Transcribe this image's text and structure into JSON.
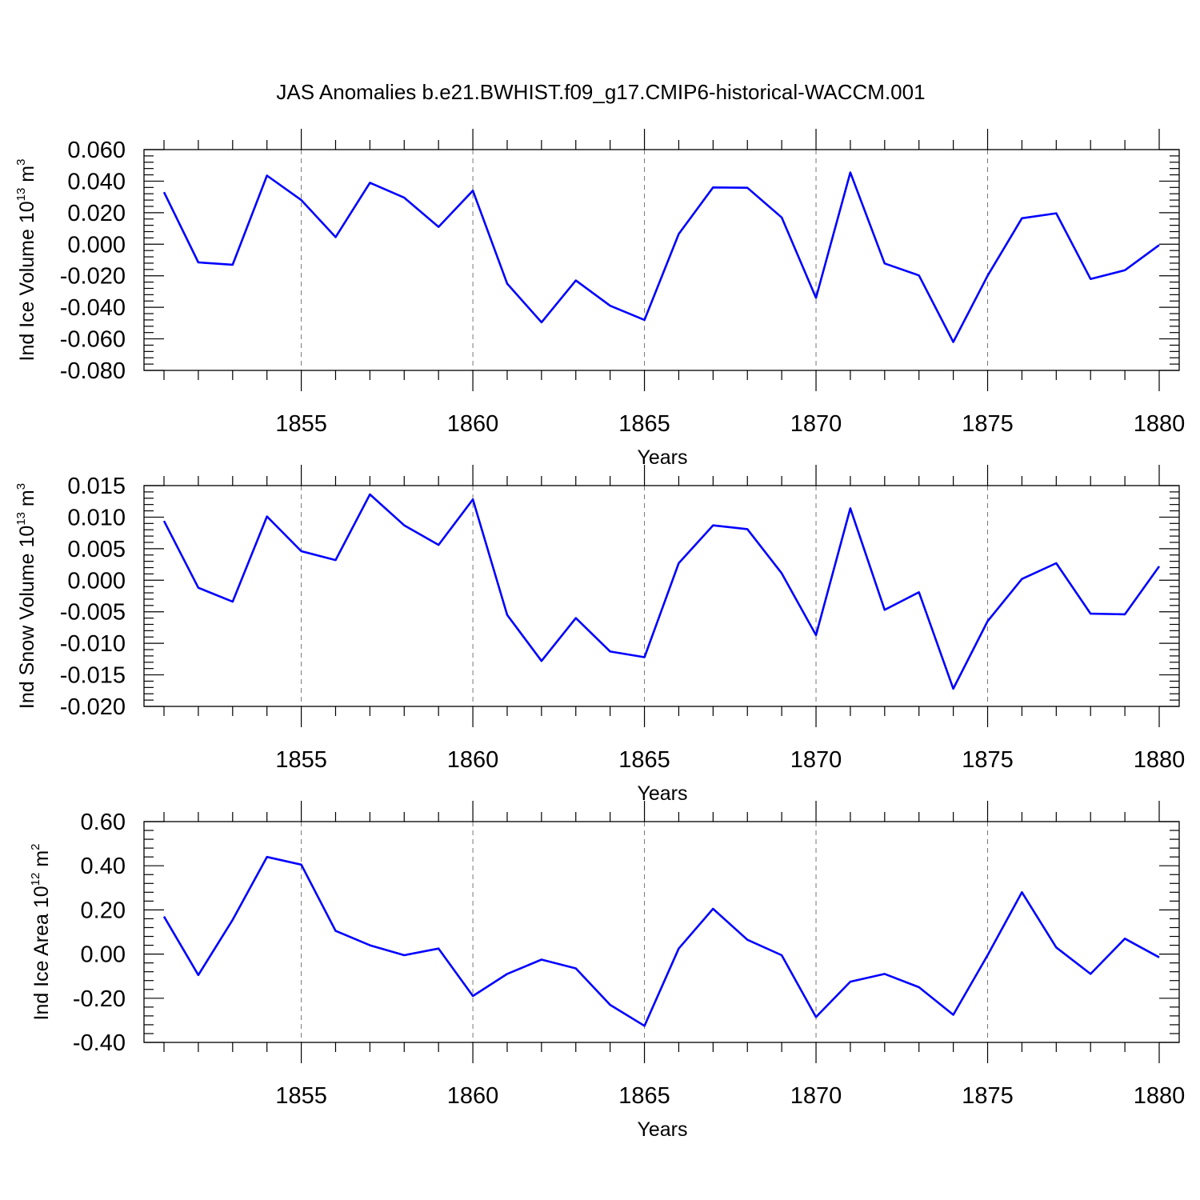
{
  "title": "JAS Anomalies b.e21.BWHIST.f09_g17.CMIP6-historical-WACCM.001",
  "colors": {
    "line": "#0000ff",
    "axis": "#000000",
    "grid": "#777777"
  },
  "chart_data": [
    {
      "type": "line",
      "xlabel": "Years",
      "ylabel": {
        "prefix": "Ind Ice Volume 10",
        "exponent": "13",
        "unit": " m",
        "unit_exponent": "3"
      },
      "xlim": [
        1851,
        1880
      ],
      "ylim": [
        -0.08,
        0.06
      ],
      "x_ticks": [
        "1855",
        "1860",
        "1865",
        "1870",
        "1875",
        "1880"
      ],
      "y_ticks": [
        "0.060",
        "0.040",
        "0.020",
        "0.000",
        "-0.020",
        "-0.040",
        "-0.060",
        "-0.080"
      ],
      "x": [
        1851,
        1852,
        1853,
        1854,
        1855,
        1856,
        1857,
        1858,
        1859,
        1860,
        1861,
        1862,
        1863,
        1864,
        1865,
        1866,
        1867,
        1868,
        1869,
        1870,
        1871,
        1872,
        1873,
        1874,
        1875,
        1876,
        1877,
        1878,
        1879,
        1880
      ],
      "series": [
        {
          "name": "Ind Ice Volume",
          "values": [
            0.033,
            -0.0115,
            -0.013,
            0.0435,
            0.028,
            0.0045,
            0.039,
            0.0295,
            0.011,
            0.034,
            -0.025,
            -0.0495,
            -0.023,
            -0.039,
            -0.048,
            0.0065,
            0.036,
            0.0358,
            0.017,
            -0.034,
            0.0455,
            -0.0122,
            -0.0198,
            -0.062,
            -0.02,
            0.0165,
            0.0196,
            -0.022,
            -0.0165,
            -0.0005
          ]
        }
      ]
    },
    {
      "type": "line",
      "xlabel": "Years",
      "ylabel": {
        "prefix": "Ind Snow Volume 10",
        "exponent": "13",
        "unit": " m",
        "unit_exponent": "3"
      },
      "xlim": [
        1851,
        1880
      ],
      "ylim": [
        -0.02,
        0.015
      ],
      "x_ticks": [
        "1855",
        "1860",
        "1865",
        "1870",
        "1875",
        "1880"
      ],
      "y_ticks": [
        "0.015",
        "0.010",
        "0.005",
        "0.000",
        "-0.005",
        "-0.010",
        "-0.015",
        "-0.020"
      ],
      "x": [
        1851,
        1852,
        1853,
        1854,
        1855,
        1856,
        1857,
        1858,
        1859,
        1860,
        1861,
        1862,
        1863,
        1864,
        1865,
        1866,
        1867,
        1868,
        1869,
        1870,
        1871,
        1872,
        1873,
        1874,
        1875,
        1876,
        1877,
        1878,
        1879,
        1880
      ],
      "series": [
        {
          "name": "Ind Snow Volume",
          "values": [
            0.0094,
            -0.0012,
            -0.0034,
            0.0101,
            0.0046,
            0.0032,
            0.0136,
            0.0087,
            0.0056,
            0.0128,
            -0.0055,
            -0.0128,
            -0.006,
            -0.0113,
            -0.0122,
            0.0027,
            0.0087,
            0.0081,
            0.0011,
            -0.0087,
            0.0114,
            -0.0047,
            -0.0019,
            -0.0172,
            -0.0065,
            0.0002,
            0.0027,
            -0.0053,
            -0.0054,
            0.0022
          ]
        }
      ]
    },
    {
      "type": "line",
      "xlabel": "Years",
      "ylabel": {
        "prefix": "Ind Ice Area 10",
        "exponent": "12",
        "unit": " m",
        "unit_exponent": "2"
      },
      "xlim": [
        1851,
        1880
      ],
      "ylim": [
        -0.4,
        0.6
      ],
      "x_ticks": [
        "1855",
        "1860",
        "1865",
        "1870",
        "1875",
        "1880"
      ],
      "y_ticks": [
        "0.60",
        "0.40",
        "0.20",
        "0.00",
        "-0.20",
        "-0.40"
      ],
      "x": [
        1851,
        1852,
        1853,
        1854,
        1855,
        1856,
        1857,
        1858,
        1859,
        1860,
        1861,
        1862,
        1863,
        1864,
        1865,
        1866,
        1867,
        1868,
        1869,
        1870,
        1871,
        1872,
        1873,
        1874,
        1875,
        1876,
        1877,
        1878,
        1879,
        1880
      ],
      "series": [
        {
          "name": "Ind Ice Area",
          "values": [
            0.17,
            -0.095,
            0.155,
            0.44,
            0.405,
            0.105,
            0.04,
            -0.005,
            0.025,
            -0.19,
            -0.09,
            -0.025,
            -0.065,
            -0.23,
            -0.325,
            0.025,
            0.205,
            0.065,
            -0.005,
            -0.285,
            -0.125,
            -0.09,
            -0.15,
            -0.275,
            -0.005,
            0.28,
            0.03,
            -0.09,
            0.07,
            -0.015
          ]
        }
      ]
    }
  ]
}
